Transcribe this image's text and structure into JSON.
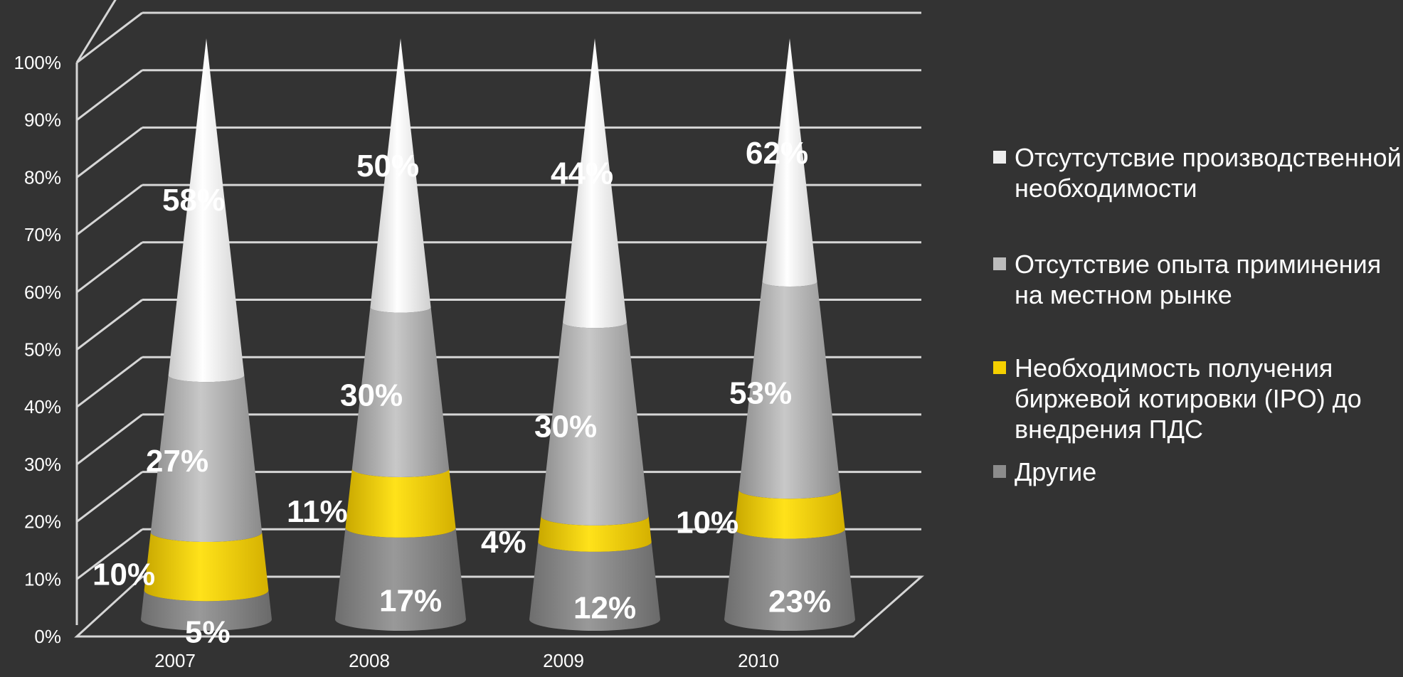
{
  "chart_data": {
    "type": "bar",
    "subtype": "stacked-cone-100-percent",
    "categories": [
      "2007",
      "2008",
      "2009",
      "2010"
    ],
    "series": [
      {
        "name": "Другие",
        "values": [
          5,
          17,
          12,
          23
        ],
        "color": "#8c8c8c"
      },
      {
        "name": "Необходимость получения биржевой котировки (IPO) до внедрения ПДС",
        "values": [
          10,
          11,
          4,
          10
        ],
        "color": "#f5d000"
      },
      {
        "name": "Отсутствие опыта приминения на местном рынке",
        "values": [
          27,
          30,
          30,
          53
        ],
        "color": "#b5b5b5"
      },
      {
        "name": "Отсутсутсвие производственной необходимости",
        "values": [
          58,
          50,
          44,
          62
        ],
        "color": "#f2f2f2"
      }
    ],
    "data_labels": [
      [
        "5%",
        "17%",
        "12%",
        "23%"
      ],
      [
        "10%",
        "11%",
        "4%",
        "10%"
      ],
      [
        "27%",
        "30%",
        "30%",
        "53%"
      ],
      [
        "58%",
        "50%",
        "44%",
        "62%"
      ]
    ],
    "y_ticks": [
      "0%",
      "10%",
      "20%",
      "30%",
      "40%",
      "50%",
      "60%",
      "70%",
      "80%",
      "90%",
      "100%"
    ],
    "ylim": [
      0,
      100
    ],
    "grid": true,
    "legend_position": "right",
    "title": "",
    "xlabel": "",
    "ylabel": ""
  }
}
